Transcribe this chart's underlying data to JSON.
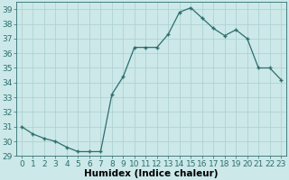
{
  "x": [
    0,
    1,
    2,
    3,
    4,
    5,
    6,
    7,
    8,
    9,
    10,
    11,
    12,
    13,
    14,
    15,
    16,
    17,
    18,
    19,
    20,
    21,
    22,
    23
  ],
  "y": [
    31.0,
    30.5,
    30.2,
    30.0,
    29.6,
    29.3,
    29.3,
    29.3,
    33.2,
    34.4,
    36.4,
    36.4,
    36.4,
    37.3,
    38.8,
    39.1,
    38.4,
    37.7,
    37.2,
    37.6,
    37.0,
    35.0,
    35.0,
    34.2
  ],
  "line_color": "#2d6e6e",
  "marker": "+",
  "marker_size": 3.5,
  "marker_lw": 1.0,
  "bg_color": "#cce8e8",
  "grid_color": "#aacfcf",
  "xlabel": "Humidex (Indice chaleur)",
  "ylim": [
    29,
    39.5
  ],
  "xlim": [
    -0.5,
    23.5
  ],
  "yticks": [
    29,
    30,
    31,
    32,
    33,
    34,
    35,
    36,
    37,
    38,
    39
  ],
  "xticks": [
    0,
    1,
    2,
    3,
    4,
    5,
    6,
    7,
    8,
    9,
    10,
    11,
    12,
    13,
    14,
    15,
    16,
    17,
    18,
    19,
    20,
    21,
    22,
    23
  ],
  "tick_fontsize": 6.5,
  "xlabel_fontsize": 7.5,
  "line_width": 0.9
}
